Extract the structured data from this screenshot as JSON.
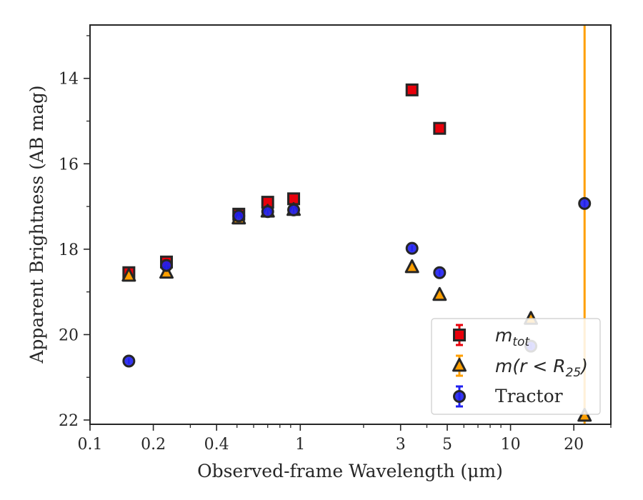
{
  "chart_data": {
    "type": "scatter",
    "title": "",
    "xlabel": "Observed-frame Wavelength (μm)",
    "ylabel": "Apparent Brightness (AB mag)",
    "x_scale": "log",
    "xlim": [
      0.1,
      30
    ],
    "ylim": [
      22.1,
      12.75
    ],
    "y_inverted": true,
    "x_ticks": [
      {
        "value": 0.1,
        "label": "0.1"
      },
      {
        "value": 0.2,
        "label": "0.2"
      },
      {
        "value": 0.4,
        "label": "0.4"
      },
      {
        "value": 1,
        "label": "1"
      },
      {
        "value": 3,
        "label": "3"
      },
      {
        "value": 5,
        "label": "5"
      },
      {
        "value": 10,
        "label": "10"
      },
      {
        "value": 20,
        "label": "20"
      }
    ],
    "y_ticks": [
      {
        "value": 14,
        "label": "14"
      },
      {
        "value": 16,
        "label": "16"
      },
      {
        "value": 18,
        "label": "18"
      },
      {
        "value": 20,
        "label": "20"
      },
      {
        "value": 22,
        "label": "22"
      }
    ],
    "grid": false,
    "legend_position": "lower right",
    "series": [
      {
        "name": "m_tot",
        "legend_main": "m",
        "legend_sub": "tot",
        "marker": "square",
        "color": "#e8000b",
        "edge_color": "#262626",
        "points": [
          {
            "x": 0.153,
            "y": 18.55
          },
          {
            "x": 0.231,
            "y": 18.3
          },
          {
            "x": 0.51,
            "y": 17.18
          },
          {
            "x": 0.7,
            "y": 16.9
          },
          {
            "x": 0.93,
            "y": 16.82
          },
          {
            "x": 3.4,
            "y": 14.27
          },
          {
            "x": 4.6,
            "y": 15.17
          }
        ]
      },
      {
        "name": "m(r < R25)",
        "legend_main": "m(r < R",
        "legend_sub": "25",
        "legend_tail": ")",
        "marker": "triangle",
        "color": "#ff9f00",
        "edge_color": "#262626",
        "points": [
          {
            "x": 0.153,
            "y": 18.62
          },
          {
            "x": 0.231,
            "y": 18.55
          },
          {
            "x": 0.51,
            "y": 17.28
          },
          {
            "x": 0.7,
            "y": 17.12
          },
          {
            "x": 0.93,
            "y": 17.08
          },
          {
            "x": 3.4,
            "y": 18.42
          },
          {
            "x": 4.6,
            "y": 19.07
          },
          {
            "x": 12.5,
            "y": 19.63
          },
          {
            "x": 22.5,
            "y": 21.9
          }
        ]
      },
      {
        "name": "Tractor",
        "legend_main": "Tractor",
        "marker": "circle",
        "color": "#1f1ff0",
        "edge_color": "#262626",
        "points": [
          {
            "x": 0.153,
            "y": 20.62
          },
          {
            "x": 0.231,
            "y": 18.38
          },
          {
            "x": 0.51,
            "y": 17.22
          },
          {
            "x": 0.7,
            "y": 17.12
          },
          {
            "x": 0.93,
            "y": 17.08
          },
          {
            "x": 3.4,
            "y": 17.98
          },
          {
            "x": 4.6,
            "y": 18.55
          },
          {
            "x": 12.5,
            "y": 20.27
          },
          {
            "x": 22.5,
            "y": 16.93
          }
        ]
      }
    ],
    "error_bars": [
      {
        "series": "m(r < R25)",
        "x": 22.5,
        "y_low": 12.75,
        "y_high": 22.1,
        "color": "#ff9f00"
      }
    ]
  }
}
